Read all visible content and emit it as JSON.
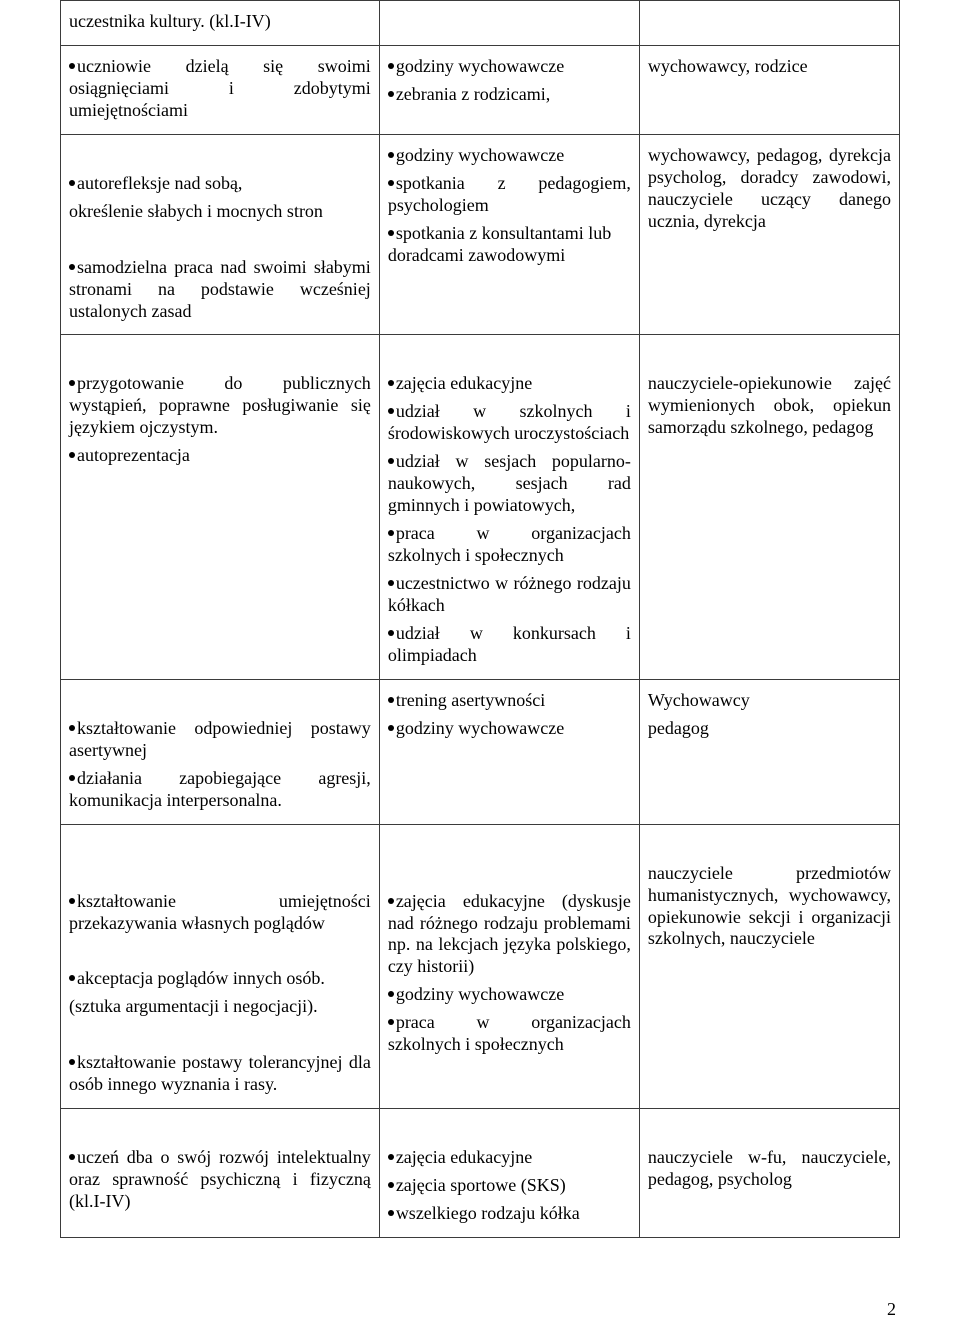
{
  "rows": [
    {
      "c1": [
        {
          "type": "text",
          "text": "uczestnika kultury. (kl.I-IV)"
        }
      ],
      "c2": [],
      "c3": []
    },
    {
      "c1": [
        {
          "type": "bullet-j",
          "text": "uczniowie dzielą się swoimi osiągnięciami i zdobytymi umiejętnościami"
        }
      ],
      "c2": [
        {
          "type": "bullet",
          "text": "godziny wychowawcze"
        },
        {
          "type": "bullet",
          "text": "zebrania z rodzicami,"
        }
      ],
      "c3": [
        {
          "type": "text",
          "text": " wychowawcy,  rodzice"
        }
      ],
      "c1pad": true
    },
    {
      "c1": [
        {
          "type": "blank"
        },
        {
          "type": "bullet",
          "text": "autorefleksje nad sobą,"
        },
        {
          "type": "text",
          "text": "określenie słabych i mocnych stron"
        },
        {
          "type": "blank"
        },
        {
          "type": "bullet-j",
          "text": "samodzielna praca nad swoimi słabymi stronami na podstawie wcześniej ustalonych zasad"
        }
      ],
      "c2": [
        {
          "type": "bullet",
          "text": "godziny wychowawcze"
        },
        {
          "type": "bullet-j",
          "text": "spotkania z pedagogiem, psychologiem"
        },
        {
          "type": "bullet",
          "text": "spotkania z konsultantami lub doradcami zawodowymi"
        }
      ],
      "c3": [
        {
          "type": "text-j",
          "text": "wychowawcy, pedagog, dyrekcja psycholog, doradcy zawodowi, nauczyciele uczący danego ucznia, dyrekcja"
        }
      ]
    },
    {
      "c1": [
        {
          "type": "blank"
        },
        {
          "type": "bullet-j",
          "text": "przygotowanie do publicznych wystąpień, poprawne posługiwanie się językiem ojczystym."
        },
        {
          "type": "bullet",
          "text": "autoprezentacja"
        }
      ],
      "c2": [
        {
          "type": "blank"
        },
        {
          "type": "bullet",
          "text": "zajęcia edukacyjne"
        },
        {
          "type": "bullet-j",
          "text": "udział w szkolnych i środowiskowych uroczystościach"
        },
        {
          "type": "bullet-j",
          "text": "udział w sesjach popularno-naukowych, sesjach rad gminnych i powiatowych,"
        },
        {
          "type": "bullet-j",
          "text": "praca w organizacjach szkolnych i społecznych"
        },
        {
          "type": "bullet-j",
          "text": "uczestnictwo w różnego rodzaju kółkach"
        },
        {
          "type": "bullet-j",
          "text": "udział w konkursach i olimpiadach"
        }
      ],
      "c3": [
        {
          "type": "blank"
        },
        {
          "type": "text-j",
          "text": "nauczyciele-opiekunowie zajęć wymienionych obok, opiekun samorządu szkolnego, pedagog"
        }
      ]
    },
    {
      "c1": [
        {
          "type": "blank"
        },
        {
          "type": "bullet-j",
          "text": "kształtowanie odpowiedniej postawy asertywnej"
        },
        {
          "type": "bullet-j",
          "text": "działania zapobiegające agresji, komunikacja interpersonalna."
        }
      ],
      "c2": [
        {
          "type": "bullet",
          "text": "trening asertywności"
        },
        {
          "type": "bullet",
          "text": "godziny wychowawcze"
        }
      ],
      "c3": [
        {
          "type": "text",
          "text": " Wychowawcy"
        },
        {
          "type": "text",
          "text": "pedagog"
        }
      ]
    },
    {
      "c1": [
        {
          "type": "blank"
        },
        {
          "type": "blank"
        },
        {
          "type": "bullet-j",
          "text": "kształtowanie umiejętności przekazywania własnych poglądów"
        },
        {
          "type": "blank"
        },
        {
          "type": "bullet",
          "text": "akceptacja poglądów innych osób."
        },
        {
          "type": "text",
          "text": "(sztuka argumentacji i negocjacji)."
        },
        {
          "type": "blank"
        },
        {
          "type": "bullet-j",
          "text": "kształtowanie postawy tolerancyjnej dla osób innego wyznania i rasy."
        }
      ],
      "c2": [
        {
          "type": "blank"
        },
        {
          "type": "blank"
        },
        {
          "type": "bullet-j",
          "text": "zajęcia edukacyjne (dyskusje nad różnego rodzaju problemami np. na lekcjach języka polskiego, czy historii)"
        },
        {
          "type": "bullet",
          "text": "godziny wychowawcze"
        },
        {
          "type": "bullet-j",
          "text": "praca w organizacjach szkolnych i społecznych"
        }
      ],
      "c3": [
        {
          "type": "blank"
        },
        {
          "type": "text-j",
          "text": "nauczyciele przedmiotów humanistycznych, wychowawcy, opiekunowie sekcji i organizacji szkolnych, nauczyciele"
        }
      ]
    },
    {
      "c1": [
        {
          "type": "blank"
        },
        {
          "type": "bullet-j",
          "text": "uczeń dba o swój rozwój intelektualny oraz sprawność psychiczną i fizyczną (kl.I-IV)"
        }
      ],
      "c2": [
        {
          "type": "blank"
        },
        {
          "type": "bullet",
          "text": "zajęcia edukacyjne"
        },
        {
          "type": "bullet",
          "text": "zajęcia sportowe (SKS)"
        },
        {
          "type": "bullet",
          "text": "wszelkiego rodzaju kółka"
        }
      ],
      "c3": [
        {
          "type": "blank"
        },
        {
          "type": "text-j",
          "text": "nauczyciele w-fu, nauczyciele, pedagog, psycholog"
        }
      ]
    }
  ],
  "pageNumber": "2"
}
